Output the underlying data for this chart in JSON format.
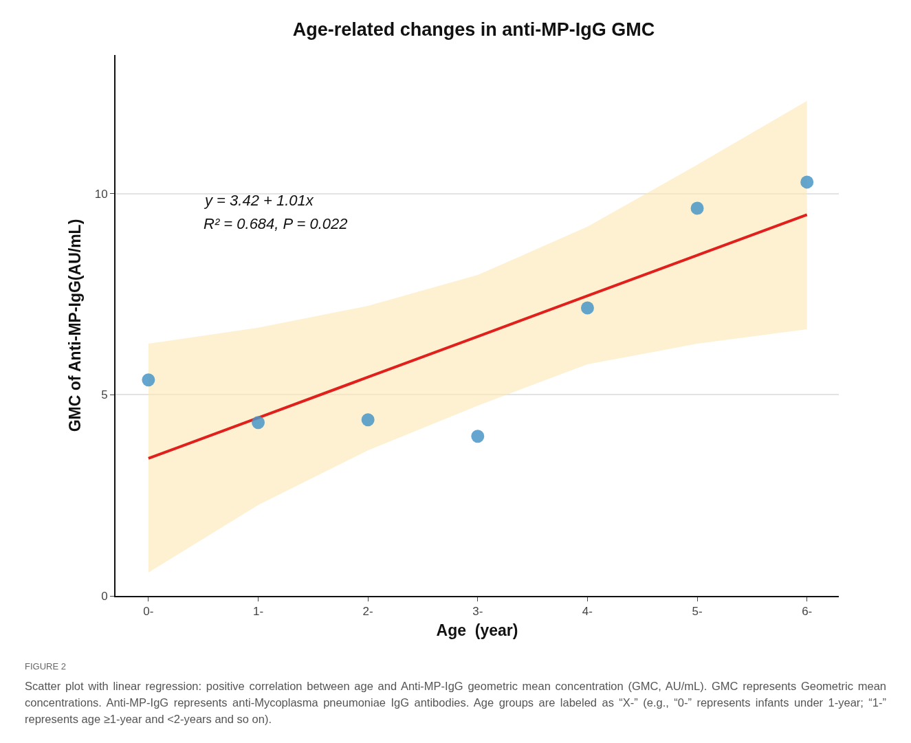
{
  "chart_data": {
    "type": "scatter",
    "title": "Age-related changes in anti-MP-IgG GMC",
    "xlabel": "Age  (year)",
    "ylabel": "GMC of Anti-MP-IgG(AU/mL)",
    "categories": [
      "0-",
      "1-",
      "2-",
      "3-",
      "4-",
      "5-",
      "6-"
    ],
    "series": [
      {
        "type": "line",
        "color": "#e0201c",
        "values": [
          3.42,
          4.43,
          5.44,
          6.45,
          7.46,
          8.47,
          9.48
        ],
        "lower": [
          0.58,
          2.26,
          3.62,
          4.73,
          5.76,
          6.27,
          6.63
        ],
        "upper": [
          6.27,
          6.67,
          7.21,
          7.98,
          9.18,
          10.72,
          12.31
        ],
        "line_style": "solid",
        "marker": "none"
      },
      {
        "color": "#4a97c8",
        "values": [
          5.37,
          4.31,
          4.38,
          3.97,
          7.16,
          9.64,
          10.29
        ],
        "marker": "circle"
      }
    ],
    "ylim": [
      0,
      13.45
    ],
    "yticks": [
      0,
      5,
      10
    ],
    "grid": "y",
    "annotations": [
      "y = 3.42 + 1.01x",
      "R² = 0.684, P = 0.022",
      "FIGURE 2",
      "Scatter plot with linear regression: positive correlation between age and Anti-MP-IgG geometric mean concentration (GMC, AU/mL). GMC represents Geometric mean concentrations. Anti-MP-IgG represents anti-Mycoplasma pneumoniae IgG antibodies. Age groups are labeled as “X-” (e.g., “0-” represents infants under 1-year; “1-” represents age ≥1-year and <2-years and so on)."
    ]
  }
}
